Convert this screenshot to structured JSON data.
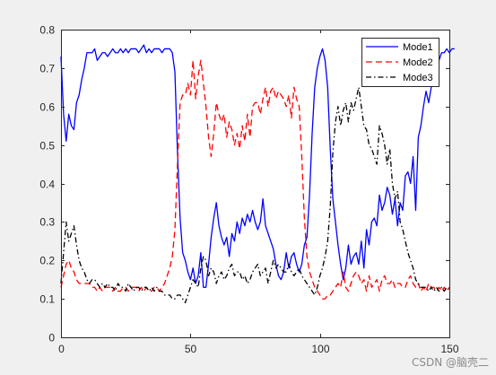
{
  "watermark": "CSDN @脑壳二",
  "chart_data": {
    "type": "line",
    "xlim": [
      0,
      150
    ],
    "ylim": [
      0,
      0.8
    ],
    "xticks": [
      "0",
      "50",
      "100",
      "150"
    ],
    "yticks": [
      "0",
      "0.1",
      "0.2",
      "0.3",
      "0.4",
      "0.5",
      "0.6",
      "0.7",
      "0.8"
    ],
    "grid": false,
    "legend_position": "top-right",
    "series": [
      {
        "name": "Mode1",
        "color": "#0000ff",
        "dash": "solid",
        "values": [
          0.73,
          0.58,
          0.51,
          0.58,
          0.55,
          0.54,
          0.61,
          0.63,
          0.67,
          0.7,
          0.74,
          0.74,
          0.74,
          0.75,
          0.72,
          0.73,
          0.74,
          0.74,
          0.73,
          0.74,
          0.75,
          0.74,
          0.74,
          0.75,
          0.74,
          0.75,
          0.74,
          0.75,
          0.75,
          0.75,
          0.74,
          0.75,
          0.76,
          0.74,
          0.75,
          0.74,
          0.75,
          0.75,
          0.75,
          0.74,
          0.75,
          0.75,
          0.75,
          0.74,
          0.69,
          0.48,
          0.31,
          0.22,
          0.2,
          0.17,
          0.15,
          0.18,
          0.14,
          0.16,
          0.22,
          0.13,
          0.13,
          0.19,
          0.26,
          0.31,
          0.35,
          0.29,
          0.26,
          0.24,
          0.26,
          0.21,
          0.27,
          0.25,
          0.3,
          0.27,
          0.31,
          0.29,
          0.32,
          0.3,
          0.33,
          0.3,
          0.28,
          0.3,
          0.36,
          0.29,
          0.27,
          0.25,
          0.23,
          0.19,
          0.16,
          0.15,
          0.17,
          0.22,
          0.18,
          0.21,
          0.22,
          0.19,
          0.17,
          0.19,
          0.24,
          0.26,
          0.37,
          0.53,
          0.65,
          0.7,
          0.73,
          0.75,
          0.72,
          0.65,
          0.49,
          0.36,
          0.3,
          0.24,
          0.19,
          0.15,
          0.18,
          0.24,
          0.19,
          0.21,
          0.22,
          0.19,
          0.25,
          0.18,
          0.28,
          0.24,
          0.3,
          0.31,
          0.29,
          0.37,
          0.33,
          0.35,
          0.39,
          0.37,
          0.32,
          0.36,
          0.29,
          0.35,
          0.33,
          0.42,
          0.43,
          0.4,
          0.47,
          0.33,
          0.52,
          0.55,
          0.6,
          0.64,
          0.61,
          0.65,
          0.68,
          0.7,
          0.72,
          0.74,
          0.74,
          0.75,
          0.74,
          0.75,
          0.75
        ]
      },
      {
        "name": "Mode2",
        "color": "#ff0000",
        "dash": "dashed",
        "values": [
          0.13,
          0.16,
          0.19,
          0.2,
          0.18,
          0.17,
          0.15,
          0.14,
          0.14,
          0.14,
          0.14,
          0.14,
          0.13,
          0.13,
          0.12,
          0.13,
          0.12,
          0.13,
          0.13,
          0.13,
          0.12,
          0.13,
          0.12,
          0.12,
          0.13,
          0.13,
          0.12,
          0.13,
          0.13,
          0.13,
          0.12,
          0.13,
          0.12,
          0.13,
          0.12,
          0.12,
          0.13,
          0.13,
          0.12,
          0.13,
          0.14,
          0.16,
          0.18,
          0.21,
          0.28,
          0.45,
          0.61,
          0.63,
          0.63,
          0.66,
          0.63,
          0.72,
          0.62,
          0.68,
          0.72,
          0.66,
          0.6,
          0.52,
          0.47,
          0.53,
          0.61,
          0.58,
          0.56,
          0.58,
          0.52,
          0.56,
          0.54,
          0.5,
          0.53,
          0.49,
          0.55,
          0.51,
          0.58,
          0.52,
          0.6,
          0.61,
          0.61,
          0.58,
          0.62,
          0.65,
          0.6,
          0.64,
          0.65,
          0.62,
          0.64,
          0.63,
          0.62,
          0.6,
          0.63,
          0.57,
          0.65,
          0.62,
          0.6,
          0.47,
          0.31,
          0.21,
          0.17,
          0.15,
          0.13,
          0.12,
          0.11,
          0.1,
          0.1,
          0.11,
          0.11,
          0.12,
          0.13,
          0.14,
          0.13,
          0.17,
          0.13,
          0.12,
          0.14,
          0.16,
          0.17,
          0.16,
          0.14,
          0.15,
          0.12,
          0.16,
          0.13,
          0.14,
          0.15,
          0.12,
          0.15,
          0.16,
          0.14,
          0.14,
          0.15,
          0.13,
          0.14,
          0.14,
          0.13,
          0.13,
          0.15,
          0.16,
          0.14,
          0.13,
          0.14,
          0.12,
          0.13,
          0.12,
          0.14,
          0.13,
          0.13,
          0.12,
          0.13,
          0.12,
          0.13,
          0.12,
          0.13
        ]
      },
      {
        "name": "Mode3",
        "color": "#000000",
        "dash": "dashdot",
        "values": [
          0.14,
          0.22,
          0.3,
          0.25,
          0.27,
          0.29,
          0.24,
          0.2,
          0.18,
          0.17,
          0.15,
          0.14,
          0.15,
          0.15,
          0.14,
          0.13,
          0.14,
          0.13,
          0.14,
          0.13,
          0.13,
          0.12,
          0.14,
          0.13,
          0.13,
          0.12,
          0.14,
          0.13,
          0.12,
          0.13,
          0.13,
          0.12,
          0.13,
          0.13,
          0.12,
          0.13,
          0.12,
          0.13,
          0.12,
          0.12,
          0.11,
          0.11,
          0.11,
          0.1,
          0.1,
          0.11,
          0.11,
          0.1,
          0.09,
          0.11,
          0.13,
          0.15,
          0.14,
          0.13,
          0.18,
          0.21,
          0.2,
          0.16,
          0.18,
          0.17,
          0.14,
          0.16,
          0.17,
          0.15,
          0.16,
          0.18,
          0.19,
          0.16,
          0.17,
          0.17,
          0.15,
          0.16,
          0.14,
          0.15,
          0.17,
          0.18,
          0.19,
          0.16,
          0.17,
          0.18,
          0.14,
          0.17,
          0.2,
          0.18,
          0.19,
          0.18,
          0.17,
          0.17,
          0.19,
          0.17,
          0.16,
          0.17,
          0.18,
          0.16,
          0.15,
          0.14,
          0.13,
          0.12,
          0.11,
          0.13,
          0.16,
          0.18,
          0.21,
          0.25,
          0.34,
          0.48,
          0.56,
          0.6,
          0.55,
          0.59,
          0.61,
          0.56,
          0.61,
          0.59,
          0.62,
          0.65,
          0.6,
          0.55,
          0.54,
          0.5,
          0.49,
          0.47,
          0.45,
          0.55,
          0.53,
          0.5,
          0.45,
          0.49,
          0.4,
          0.36,
          0.38,
          0.3,
          0.28,
          0.25,
          0.22,
          0.2,
          0.18,
          0.15,
          0.14,
          0.13,
          0.13,
          0.13,
          0.12,
          0.13,
          0.12,
          0.13,
          0.12,
          0.13,
          0.12,
          0.13,
          0.12
        ]
      }
    ]
  }
}
